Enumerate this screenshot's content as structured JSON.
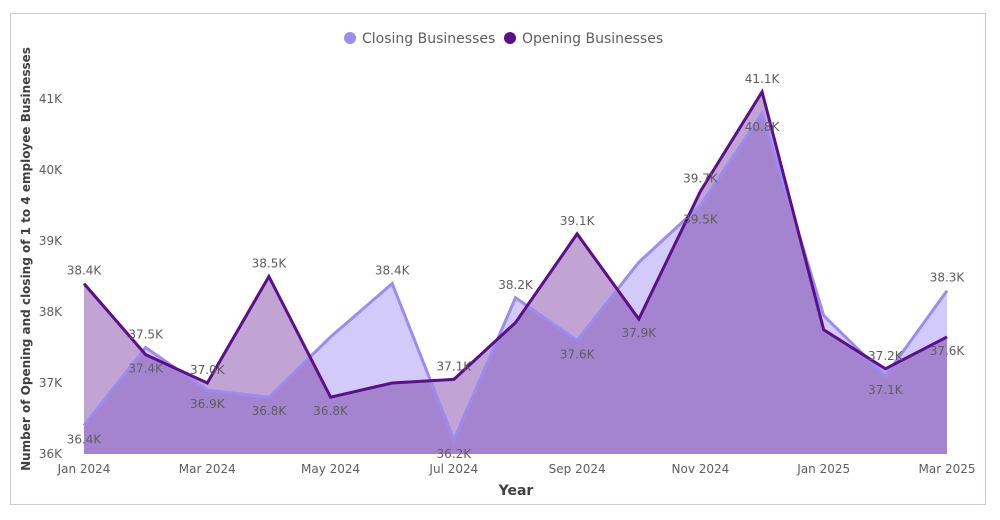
{
  "chart_data": {
    "type": "area",
    "title": "",
    "xlabel": "Year",
    "ylabel": "Number of Opening and closing of 1 to 4 employee Businesses",
    "ylim": [
      36000,
      41500
    ],
    "y_ticks": [
      "36K",
      "37K",
      "38K",
      "39K",
      "40K",
      "41K"
    ],
    "x_ticks": [
      "Jan 2024",
      "Mar 2024",
      "May 2024",
      "Jul 2024",
      "Sep 2024",
      "Nov 2024",
      "Jan 2025",
      "Mar 2025"
    ],
    "x": [
      "2024-01",
      "2024-02",
      "2024-03",
      "2024-04",
      "2024-05",
      "2024-06",
      "2024-07",
      "2024-08",
      "2024-09",
      "2024-10",
      "2024-11",
      "2024-12",
      "2025-01",
      "2025-02",
      "2025-03"
    ],
    "legend_position": "top-center",
    "series": [
      {
        "name": "Closing Businesses",
        "color": "#9b8cf2",
        "values": [
          36400,
          37500,
          36900,
          36800,
          37650,
          38400,
          36200,
          38200,
          37600,
          38700,
          39500,
          40800,
          37950,
          37100,
          38300
        ],
        "labels": [
          "36.4K",
          "37.5K",
          "36.9K",
          "36.8K",
          "",
          "38.4K",
          "36.2K",
          "38.2K",
          "37.6K",
          "",
          "39.5K",
          "40.8K",
          "",
          "37.1K",
          "38.3K"
        ]
      },
      {
        "name": "Opening Businesses",
        "color": "#5c0f8b",
        "values": [
          38400,
          37400,
          37000,
          38500,
          36800,
          37000,
          37050,
          37850,
          39100,
          37900,
          39700,
          41100,
          37750,
          37200,
          37650
        ],
        "labels": [
          "38.4K",
          "37.4K",
          "37.0K",
          "38.5K",
          "36.8K",
          "",
          "37.1K",
          "",
          "39.1K",
          "37.9K",
          "39.7K",
          "41.1K",
          "",
          "37.2K",
          "37.6K"
        ]
      }
    ]
  }
}
